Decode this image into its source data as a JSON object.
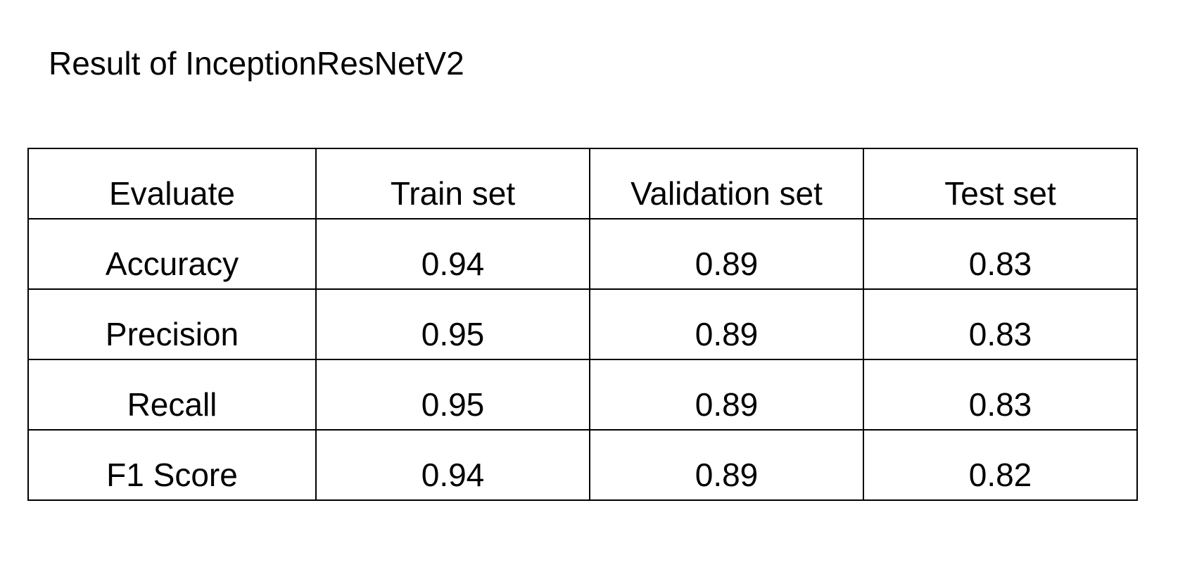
{
  "title": "Result of InceptionResNetV2",
  "table": {
    "headers": [
      "Evaluate",
      "Train set",
      "Validation set",
      "Test set"
    ],
    "rows": [
      [
        "Accuracy",
        "0.94",
        "0.89",
        "0.83"
      ],
      [
        "Precision",
        "0.95",
        "0.89",
        "0.83"
      ],
      [
        "Recall",
        "0.95",
        "0.89",
        "0.83"
      ],
      [
        "F1 Score",
        "0.94",
        "0.89",
        "0.82"
      ]
    ]
  }
}
